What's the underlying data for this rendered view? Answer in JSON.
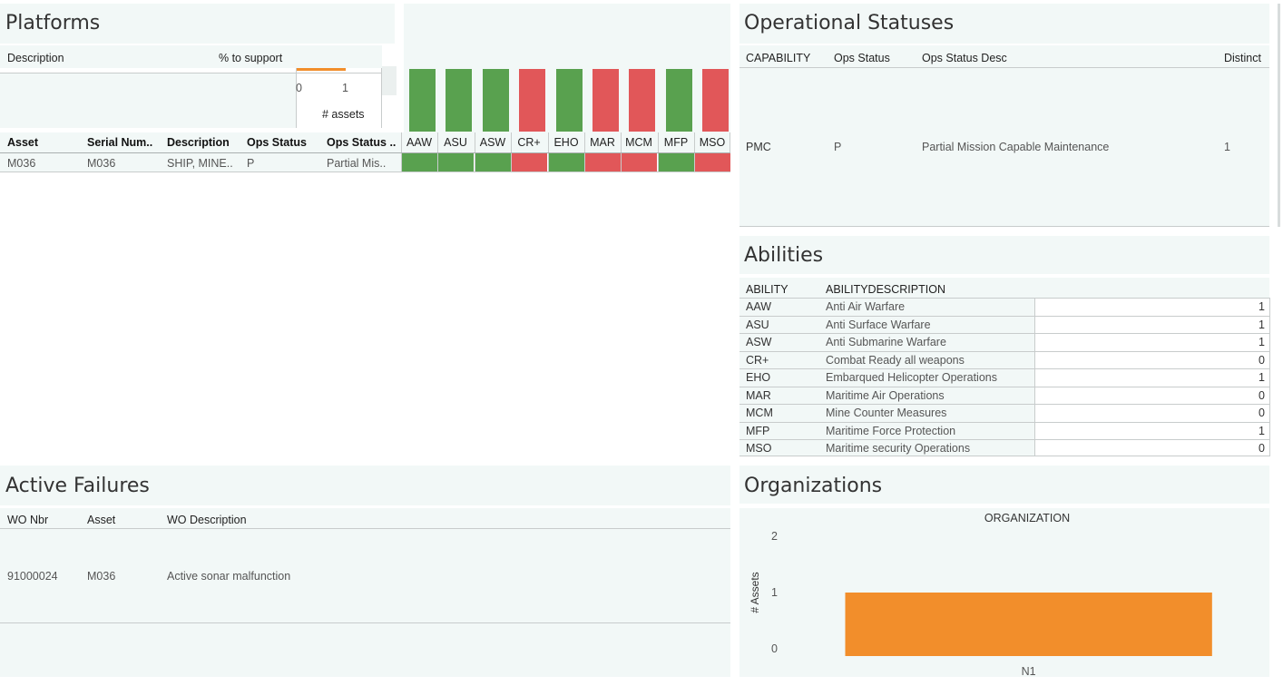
{
  "platforms": {
    "title": "Platforms",
    "summary": {
      "col_description": "Description",
      "col_pct": "% to support",
      "axis_ticks": [
        "0",
        "1"
      ],
      "axis_label": "# assets",
      "bar_value": 1
    },
    "table": {
      "headers": [
        "Asset",
        "Serial Num..",
        "Description",
        "Ops Status",
        "Ops Status .."
      ],
      "row": [
        "M036",
        "M036",
        "SHIP, MINE..",
        "P",
        "Partial Mis.."
      ]
    },
    "capabilities": [
      {
        "code": "AAW",
        "status": "ok"
      },
      {
        "code": "ASU",
        "status": "ok"
      },
      {
        "code": "ASW",
        "status": "ok"
      },
      {
        "code": "CR+",
        "status": "fail"
      },
      {
        "code": "EHO",
        "status": "ok"
      },
      {
        "code": "MAR",
        "status": "fail"
      },
      {
        "code": "MCM",
        "status": "fail"
      },
      {
        "code": "MFP",
        "status": "ok"
      },
      {
        "code": "MSO",
        "status": "fail"
      }
    ],
    "colors": {
      "ok": "#59a14f",
      "fail": "#e15759",
      "accent": "#f28e2b"
    }
  },
  "operational_statuses": {
    "title": "Operational Statuses",
    "headers": [
      "CAPABILITY",
      "Ops Status",
      "Ops Status Desc",
      "Distinct"
    ],
    "row": [
      "PMC",
      "P",
      "Partial Mission Capable Maintenance",
      "1"
    ]
  },
  "abilities": {
    "title": "Abilities",
    "headers": [
      "ABILITY",
      "ABILITYDESCRIPTION"
    ],
    "rows": [
      {
        "code": "AAW",
        "desc": "Anti Air Warfare",
        "value": "1"
      },
      {
        "code": "ASU",
        "desc": "Anti Surface Warfare",
        "value": "1"
      },
      {
        "code": "ASW",
        "desc": "Anti Submarine Warfare",
        "value": "1"
      },
      {
        "code": "CR+",
        "desc": "Combat Ready all weapons",
        "value": "0"
      },
      {
        "code": "EHO",
        "desc": "Embarqued Helicopter Operations",
        "value": "1"
      },
      {
        "code": "MAR",
        "desc": "Maritime Air Operations",
        "value": "0"
      },
      {
        "code": "MCM",
        "desc": "Mine Counter Measures",
        "value": "0"
      },
      {
        "code": "MFP",
        "desc": "Maritime Force Protection",
        "value": "1"
      },
      {
        "code": "MSO",
        "desc": "Maritime security Operations",
        "value": "0"
      }
    ]
  },
  "active_failures": {
    "title": "Active Failures",
    "headers": [
      "WO Nbr",
      "Asset",
      "WO Description"
    ],
    "row": [
      "91000024",
      "M036",
      "Active sonar malfunction"
    ]
  },
  "organizations": {
    "title": "Organizations",
    "chart_data": {
      "type": "bar",
      "title": "ORGANIZATION",
      "ylabel": "# Assets",
      "categories": [
        "N1"
      ],
      "values": [
        1
      ],
      "ylim": [
        0,
        2
      ],
      "yticks": [
        "0",
        "1",
        "2"
      ],
      "color": "#f28e2b"
    }
  }
}
